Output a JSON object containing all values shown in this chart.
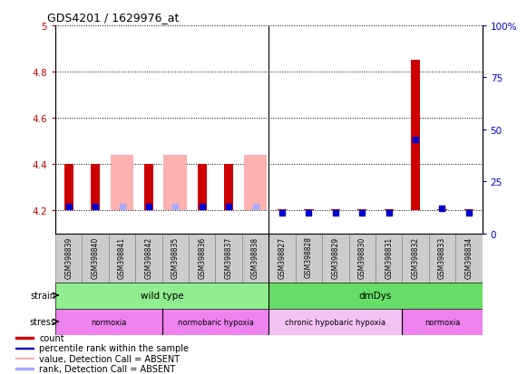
{
  "title": "GDS4201 / 1629976_at",
  "samples": [
    "GSM398839",
    "GSM398840",
    "GSM398841",
    "GSM398842",
    "GSM398835",
    "GSM398836",
    "GSM398837",
    "GSM398838",
    "GSM398827",
    "GSM398828",
    "GSM398829",
    "GSM398830",
    "GSM398831",
    "GSM398832",
    "GSM398833",
    "GSM398834"
  ],
  "ylim_left": [
    4.1,
    5.0
  ],
  "ylim_right": [
    0,
    100
  ],
  "yticks_left": [
    4.2,
    4.4,
    4.6,
    4.8,
    5.0
  ],
  "yticks_right": [
    0,
    25,
    50,
    75,
    100
  ],
  "ytick_labels_left": [
    "4.2",
    "4.4",
    "4.6",
    "4.8",
    "5"
  ],
  "ytick_labels_right": [
    "0",
    "25",
    "50",
    "75",
    "100%"
  ],
  "red_bar_top": [
    4.4,
    4.4,
    4.2,
    4.4,
    4.2,
    4.4,
    4.4,
    4.2,
    4.2,
    4.2,
    4.2,
    4.2,
    4.2,
    4.85,
    4.2,
    4.2
  ],
  "red_bar_absent": [
    false,
    false,
    true,
    false,
    true,
    false,
    false,
    true,
    false,
    false,
    false,
    false,
    false,
    false,
    false,
    false
  ],
  "pink_bar_top": [
    4.2,
    4.2,
    4.44,
    4.2,
    4.44,
    4.2,
    4.2,
    4.44,
    4.2,
    4.2,
    4.2,
    4.2,
    4.2,
    4.2,
    4.2,
    4.2
  ],
  "blue_dot_pct": [
    13,
    13,
    13,
    13,
    13,
    13,
    13,
    13,
    10,
    10,
    10,
    10,
    10,
    45,
    12,
    10
  ],
  "blue_dot_absent": [
    false,
    false,
    true,
    false,
    true,
    false,
    false,
    true,
    false,
    false,
    false,
    false,
    false,
    false,
    false,
    false
  ],
  "bar_base": 4.2,
  "strain_groups": [
    {
      "label": "wild type",
      "start": 0,
      "end": 8,
      "color": "#90EE90"
    },
    {
      "label": "dmDys",
      "start": 8,
      "end": 16,
      "color": "#66DD66"
    }
  ],
  "stress_groups": [
    {
      "label": "normoxia",
      "start": 0,
      "end": 4,
      "color": "#EE82EE"
    },
    {
      "label": "normobaric hypoxia",
      "start": 4,
      "end": 8,
      "color": "#EE82EE"
    },
    {
      "label": "chronic hypobaric hypoxia",
      "start": 8,
      "end": 13,
      "color": "#F5C2F5"
    },
    {
      "label": "normoxia",
      "start": 13,
      "end": 16,
      "color": "#EE82EE"
    }
  ],
  "legend_items": [
    {
      "label": "count",
      "color": "#CC0000"
    },
    {
      "label": "percentile rank within the sample",
      "color": "#0000CC"
    },
    {
      "label": "value, Detection Call = ABSENT",
      "color": "#FFB0B0"
    },
    {
      "label": "rank, Detection Call = ABSENT",
      "color": "#AAAAFF"
    }
  ],
  "bar_width": 0.35,
  "dot_size": 18,
  "left_tick_color": "#CC0000",
  "right_tick_color": "#0000CC",
  "separator_col": 7.5
}
